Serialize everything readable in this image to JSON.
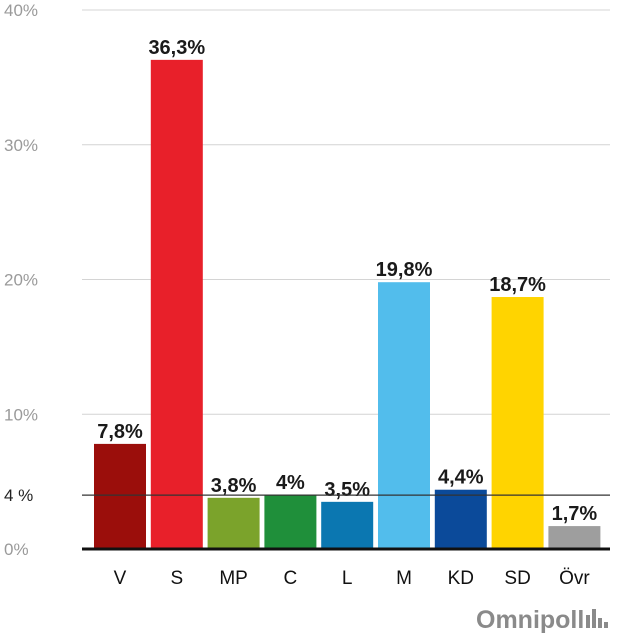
{
  "chart_data": {
    "type": "bar",
    "categories": [
      "V",
      "S",
      "MP",
      "C",
      "L",
      "M",
      "KD",
      "SD",
      "Övr"
    ],
    "values": [
      7.8,
      36.3,
      3.8,
      4.0,
      3.5,
      19.8,
      4.4,
      18.7,
      1.7
    ],
    "value_labels": [
      "7,8%",
      "36,3%",
      "3,8%",
      "4%",
      "3,5%",
      "19,8%",
      "4,4%",
      "18,7%",
      "1,7%"
    ],
    "colors": [
      "#9b0e0b",
      "#e8202a",
      "#7ba32b",
      "#1f8f3a",
      "#0b77b1",
      "#52bdec",
      "#0b4a9a",
      "#ffd400",
      "#9e9e9e"
    ],
    "ylim": [
      0,
      40
    ],
    "yticks": [
      0,
      10,
      20,
      30,
      40
    ],
    "ytick_labels": [
      "0%",
      "10%",
      "20%",
      "30%",
      "40%"
    ],
    "threshold": {
      "value": 4,
      "label": "4 %"
    },
    "grid": true,
    "title": "",
    "xlabel": "",
    "ylabel": ""
  },
  "brand": {
    "name": "Omnipoll"
  }
}
